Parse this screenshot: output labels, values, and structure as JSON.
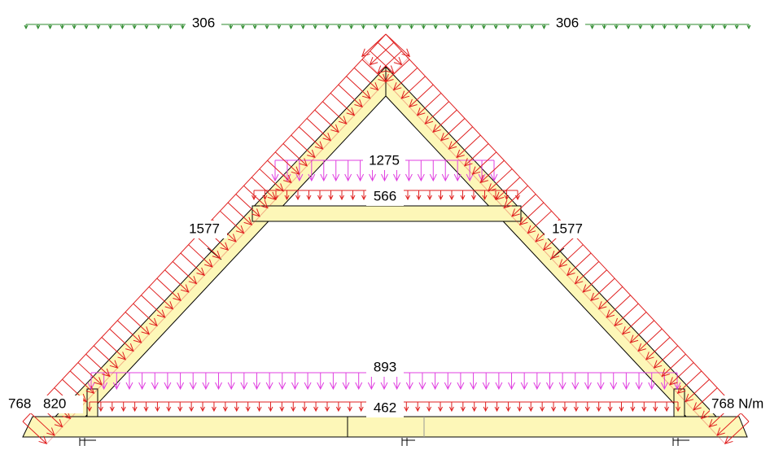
{
  "loads": {
    "top_left": "306",
    "top_right": "306",
    "collar_upper": "1275",
    "collar_lower": "566",
    "rafter_left": "1577",
    "rafter_right": "1577",
    "tie_upper": "893",
    "tie_lower": "462",
    "end_left_outer": "768",
    "end_left_inner": "820",
    "end_right": "768 N/m"
  }
}
